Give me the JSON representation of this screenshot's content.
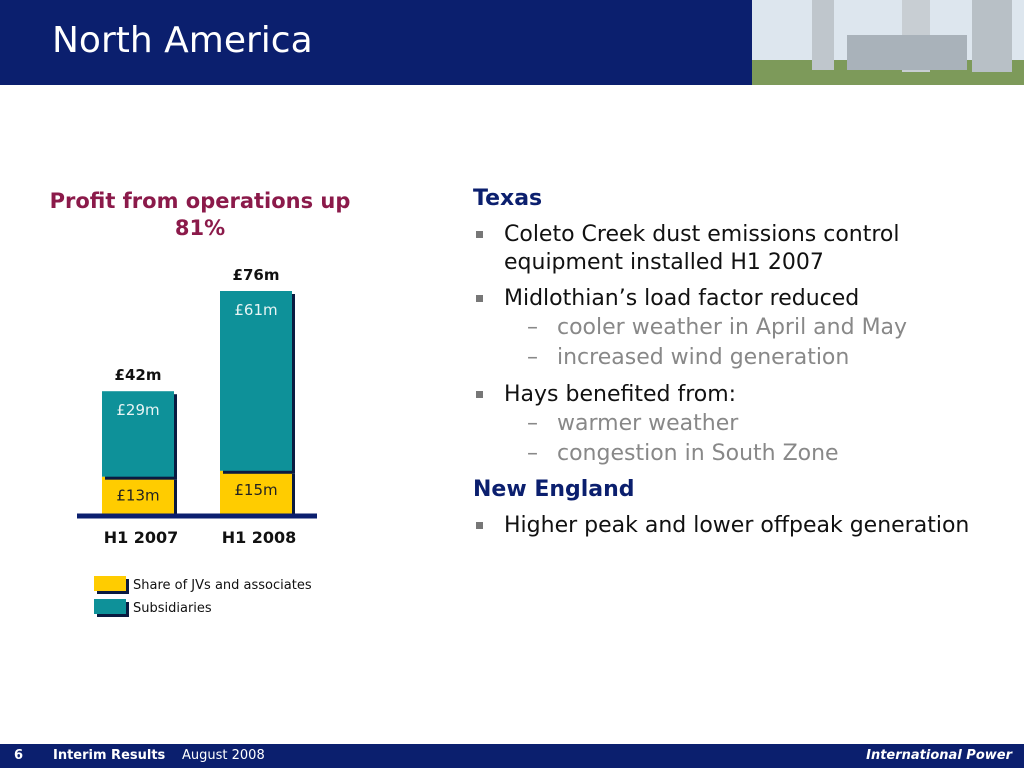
{
  "header": {
    "title": "North America"
  },
  "chart_data": {
    "type": "stacked-bar",
    "title": "Profit from operations up 81%",
    "categories": [
      "H1 2007",
      "H1 2008"
    ],
    "series": [
      {
        "name": "Share of JVs and associates",
        "color": "#ffcc00",
        "values": [
          13,
          15
        ],
        "value_labels": [
          "£13m",
          "£15m"
        ]
      },
      {
        "name": "Subsidiaries",
        "color": "#0e9199",
        "values": [
          29,
          61
        ],
        "value_labels": [
          "£29m",
          "£61m"
        ]
      }
    ],
    "totals": {
      "values": [
        42,
        76
      ],
      "value_labels": [
        "£42m",
        "£76m"
      ]
    }
  },
  "sections": [
    {
      "heading": "Texas",
      "bullets": [
        {
          "text": "Coleto Creek dust emissions control equipment installed H1 2007",
          "sub": []
        },
        {
          "text": "Midlothian’s load factor reduced",
          "sub": [
            "cooler weather in April and May",
            "increased wind generation"
          ]
        },
        {
          "text": "Hays benefited from:",
          "sub": [
            "warmer weather",
            "congestion in South Zone"
          ]
        }
      ]
    },
    {
      "heading": "New England",
      "bullets": [
        {
          "text": "Higher peak and lower offpeak generation",
          "sub": []
        }
      ]
    }
  ],
  "footer": {
    "page": "6",
    "doc": "Interim Results",
    "date": "August 2008",
    "company": "International Power"
  }
}
